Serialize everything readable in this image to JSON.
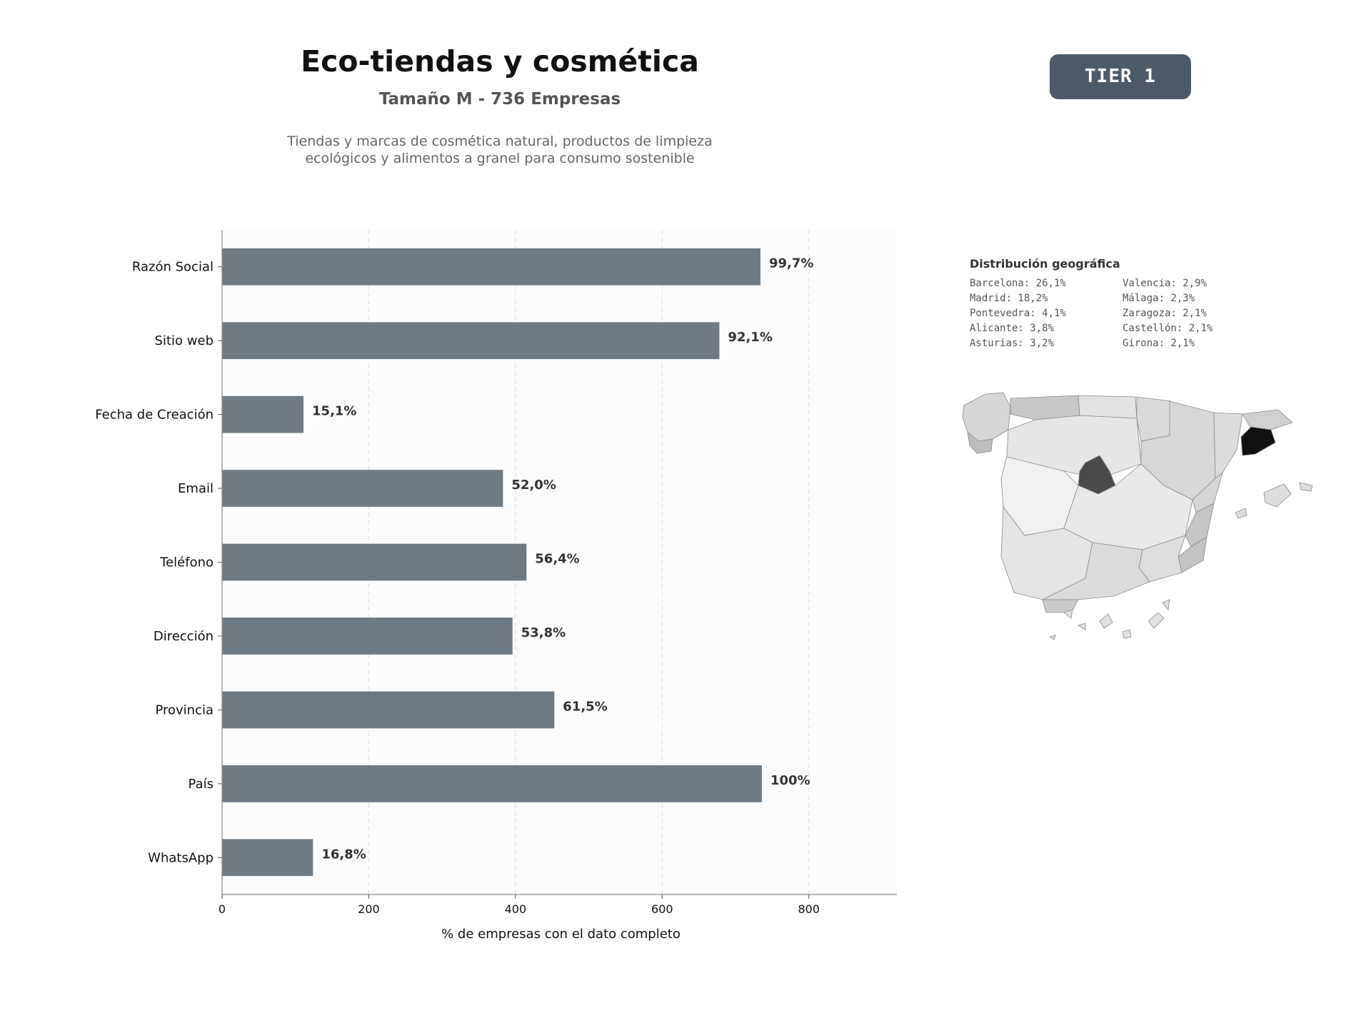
{
  "header": {
    "title": "Eco-tiendas y cosmética",
    "subtitle": "Tamaño M - 736 Empresas",
    "description_line1": "Tiendas y marcas de cosmética natural, productos de limpieza",
    "description_line2": "ecológicos y alimentos a granel para consumo sostenible",
    "tier": "TIER 1"
  },
  "chart_data": {
    "type": "bar",
    "orientation": "horizontal",
    "categories": [
      "Razón Social",
      "Sitio web",
      "Fecha de Creación",
      "Email",
      "Teléfono",
      "Dirección",
      "Provincia",
      "País",
      "WhatsApp"
    ],
    "values": [
      734,
      678,
      111,
      383,
      415,
      396,
      453,
      736,
      124
    ],
    "value_labels": [
      "99,7%",
      "92,1%",
      "15,1%",
      "52,0%",
      "56,4%",
      "53,8%",
      "61,5%",
      "100%",
      "16,8%"
    ],
    "xlabel": "% de empresas con el dato completo",
    "ylabel": "",
    "xlim": [
      0,
      920
    ],
    "xticks": [
      0,
      200,
      400,
      600,
      800
    ],
    "grid": true,
    "bar_color": "#6e7a84"
  },
  "geo": {
    "title": "Distribución geográfica",
    "entries": [
      "Barcelona: 26,1%",
      "Valencia: 2,9%",
      "Madrid: 18,2%",
      "Málaga: 2,3%",
      "Pontevedra: 4,1%",
      "Zaragoza: 2,1%",
      "Alicante: 3,8%",
      "Castellón: 2,1%",
      "Asturias: 3,2%",
      "Girona: 2,1%"
    ]
  }
}
